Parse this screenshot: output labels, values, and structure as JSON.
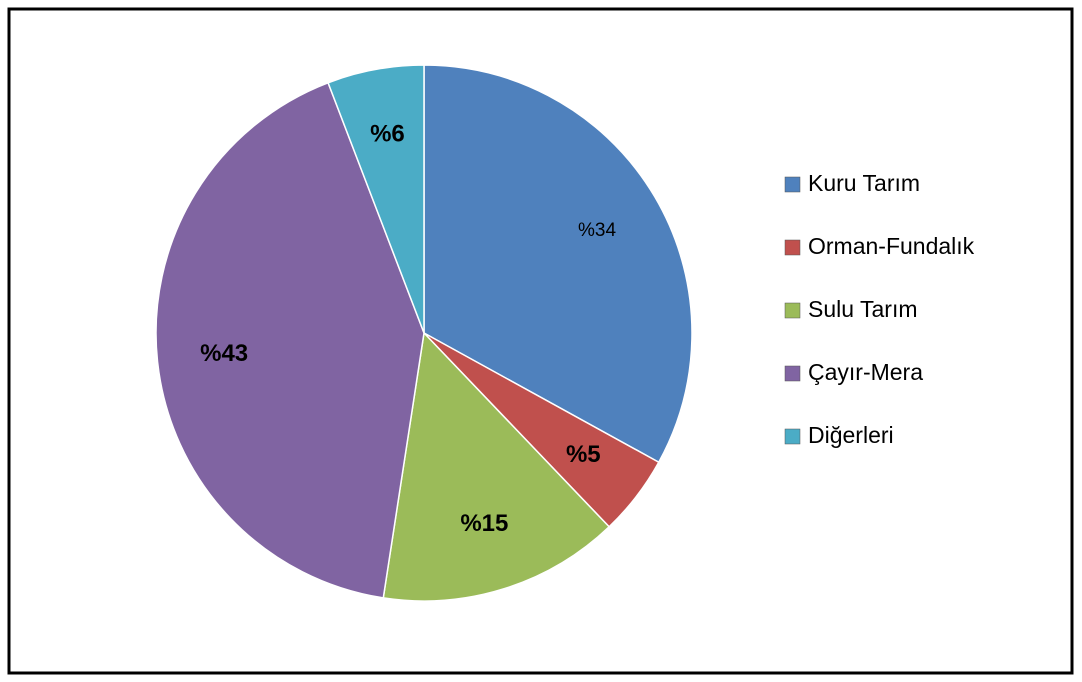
{
  "chart_data": {
    "type": "pie",
    "categories": [
      "Kuru Tarım",
      "Orman-Fundalık",
      "Sulu Tarım",
      "Çayır-Mera",
      "Diğerleri"
    ],
    "values": [
      34,
      5,
      15,
      43,
      6
    ],
    "value_labels": [
      "%34",
      "%5",
      "%15",
      "%43",
      "%6"
    ],
    "colors": [
      "#4f81bd",
      "#c0504d",
      "#9bbb59",
      "#8064a2",
      "#4bacc6"
    ],
    "legend": "right"
  }
}
